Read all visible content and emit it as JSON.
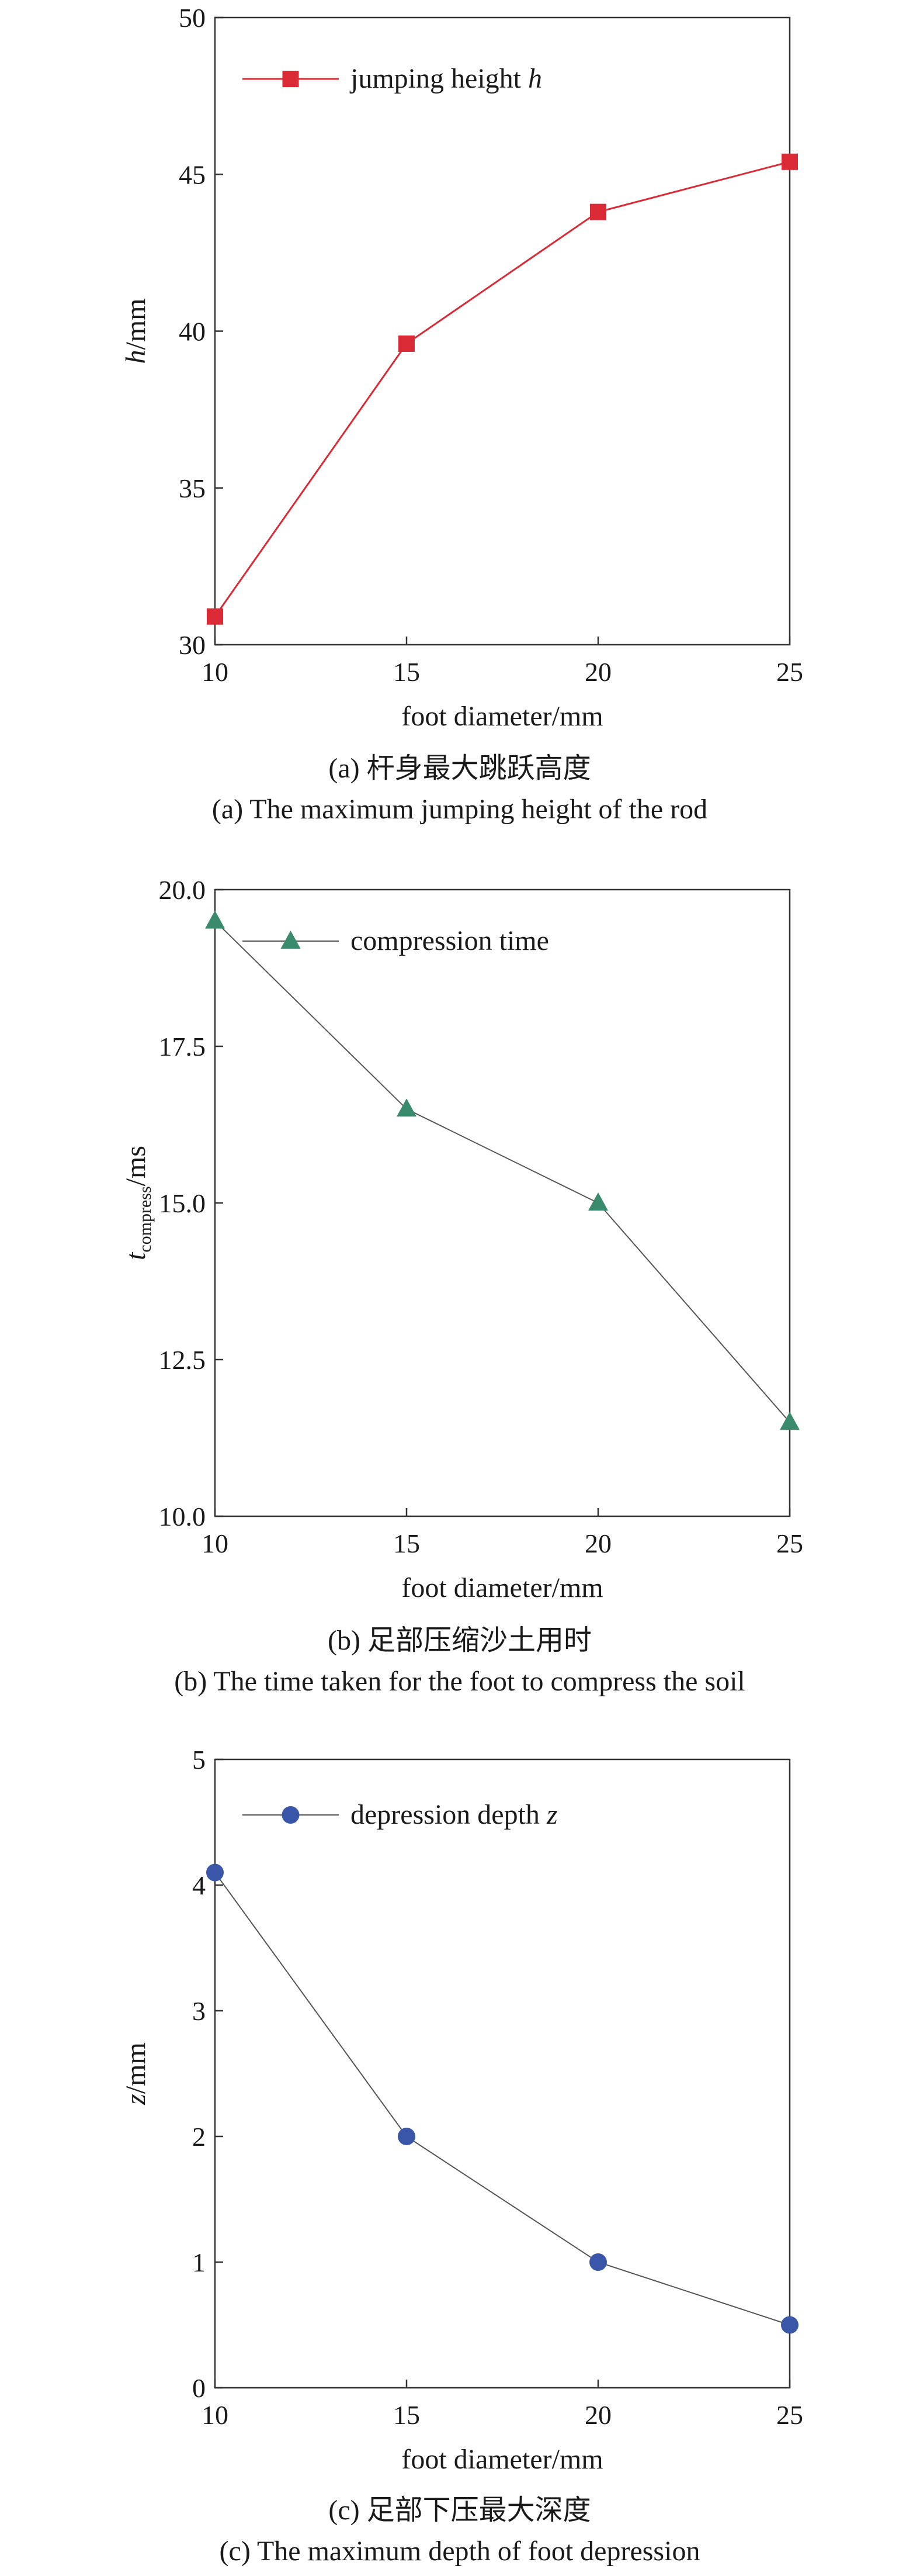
{
  "chart_data": [
    {
      "type": "line",
      "x": [
        10,
        15,
        20,
        25
      ],
      "series": [
        {
          "name": "jumping height h",
          "values": [
            30.9,
            39.6,
            43.8,
            45.4
          ]
        }
      ],
      "xlabel": "foot diameter/mm",
      "ylabel": {
        "symbol": "h",
        "unit": "/mm"
      },
      "xlim": [
        10,
        25
      ],
      "ylim": [
        30,
        50
      ],
      "x_ticks": [
        10,
        15,
        20,
        25
      ],
      "y_ticks": [
        "30",
        "35",
        "40",
        "45",
        "50"
      ],
      "legend": {
        "symbol": "h",
        "placement": "top-left"
      },
      "marker": "square",
      "color": "#d92a35",
      "caption_cn": "(a) 杆身最大跳跃高度",
      "caption_en": "(a) The maximum jumping height of the rod"
    },
    {
      "type": "line",
      "x": [
        10,
        15,
        20,
        25
      ],
      "series": [
        {
          "name": "compression time",
          "values": [
            19.5,
            16.5,
            15.0,
            11.5
          ]
        }
      ],
      "xlabel": "foot diameter/mm",
      "ylabel": {
        "symbol": "t",
        "subscript": "compress",
        "unit": "/ms"
      },
      "xlim": [
        10,
        25
      ],
      "ylim": [
        10,
        20
      ],
      "x_ticks": [
        10,
        15,
        20,
        25
      ],
      "y_ticks": [
        "10.0",
        "12.5",
        "15.0",
        "17.5",
        "20.0"
      ],
      "legend": {
        "placement": "top-left"
      },
      "marker": "triangle",
      "color": "#3a8a6e",
      "caption_cn": "(b) 足部压缩沙土用时",
      "caption_en": "(b) The time taken for the foot to compress the soil"
    },
    {
      "type": "line",
      "x": [
        10,
        15,
        20,
        25
      ],
      "series": [
        {
          "name": "depression depth z",
          "values": [
            4.1,
            2.0,
            1.0,
            0.5
          ]
        }
      ],
      "xlabel": "foot diameter/mm",
      "ylabel": {
        "symbol": "z",
        "unit": "/mm"
      },
      "xlim": [
        10,
        25
      ],
      "ylim": [
        0,
        5
      ],
      "x_ticks": [
        10,
        15,
        20,
        25
      ],
      "y_ticks": [
        "0",
        "1",
        "2",
        "3",
        "4",
        "5"
      ],
      "legend": {
        "symbol": "z",
        "placement": "top-left"
      },
      "marker": "circle",
      "color": "#3a56a8",
      "caption_cn": "(c) 足部下压最大深度",
      "caption_en": "(c) The maximum depth of foot depression"
    }
  ]
}
